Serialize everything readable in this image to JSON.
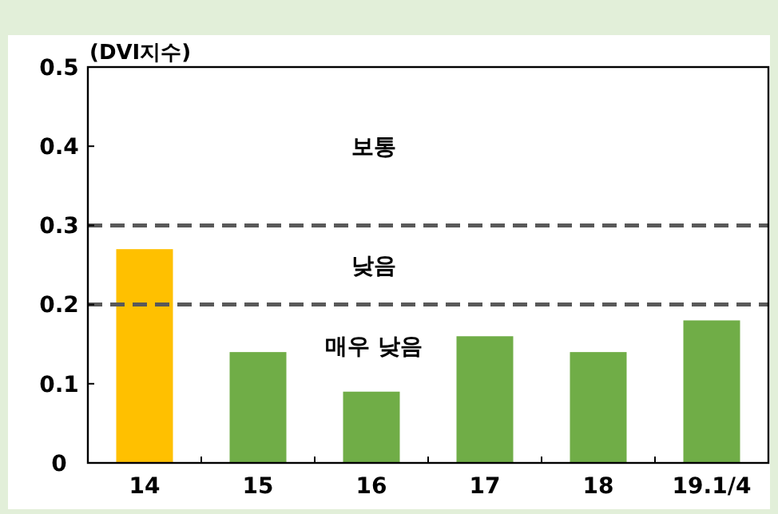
{
  "chart_data": {
    "type": "bar",
    "ylabel": "(DVI지수)",
    "categories": [
      "14",
      "15",
      "16",
      "17",
      "18",
      "19.1/4"
    ],
    "values": [
      0.27,
      0.14,
      0.09,
      0.16,
      0.14,
      0.18
    ],
    "colors": [
      "#ffc000",
      "#70ad47",
      "#70ad47",
      "#70ad47",
      "#70ad47",
      "#70ad47"
    ],
    "ylim": [
      0,
      0.5
    ],
    "yticks": [
      0,
      0.1,
      0.2,
      0.3,
      0.4,
      0.5
    ],
    "ref_lines": [
      {
        "axis": "y",
        "value": 0.3,
        "color": "#595959",
        "line_style": "dashed"
      },
      {
        "axis": "y",
        "value": 0.2,
        "color": "#595959",
        "line_style": "dashed"
      }
    ],
    "annotations": [
      "보통",
      "낮음",
      "매우 낮음"
    ],
    "grid": false
  }
}
